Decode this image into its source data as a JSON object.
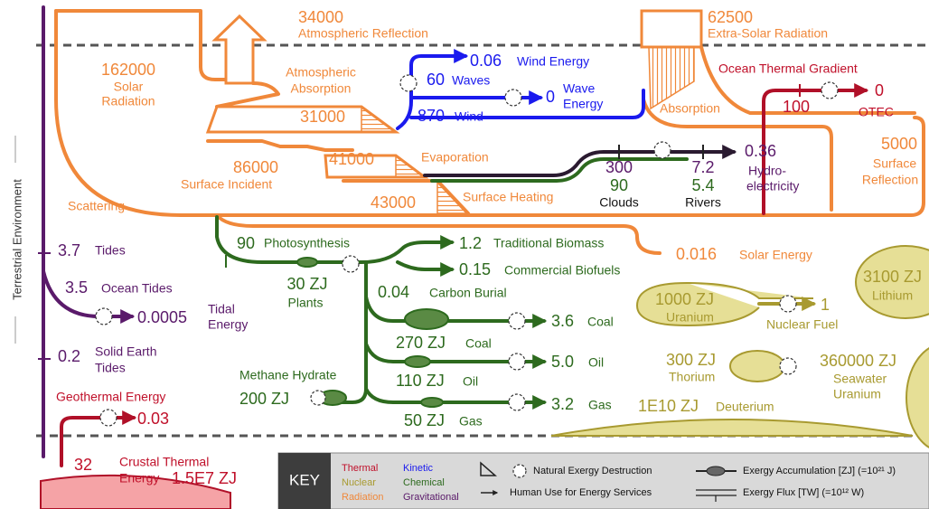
{
  "side_label": "Terrestrial Environment",
  "nodes": {
    "atmospheric_reflection": {
      "value": 34000,
      "label": "Atmospheric Reflection"
    },
    "extra_solar": {
      "value": 62500,
      "label": "Extra-Solar Radiation"
    },
    "solar_radiation": {
      "value": 162000,
      "label": [
        "Solar",
        "Radiation"
      ]
    },
    "atmospheric_absorption": {
      "value": 31000,
      "label": [
        "Atmospheric",
        "Absorption"
      ]
    },
    "wind_energy": {
      "value": 0.06,
      "label": "Wind Energy"
    },
    "waves": {
      "value": 60,
      "label": "Waves"
    },
    "wave_energy": {
      "value": 0,
      "label": [
        "Wave",
        "Energy"
      ]
    },
    "wind": {
      "value": 870,
      "label": "Wind"
    },
    "absorption": {
      "label": "Absorption"
    },
    "ocean_thermal_gradient": {
      "value": 100,
      "label": "Ocean Thermal Gradient"
    },
    "otec": {
      "value": 0,
      "label": "OTEC"
    },
    "surface_reflection": {
      "value": 5000,
      "label": [
        "Surface",
        "Reflection"
      ]
    },
    "surface_incident": {
      "value": 86000,
      "label": "Surface Incident"
    },
    "evaporation": {
      "value": 41000,
      "label": "Evaporation"
    },
    "surface_heating": {
      "value": 43000,
      "label": "Surface Heating"
    },
    "scattering": {
      "label": "Scattering"
    },
    "clouds": {
      "values": [
        300,
        90
      ],
      "label": "Clouds"
    },
    "rivers": {
      "values": [
        7.2,
        5.4
      ],
      "label": "Rivers"
    },
    "hydroelectricity": {
      "value": 0.36,
      "label": [
        "Hydro-",
        "electricity"
      ]
    },
    "tides": {
      "value": 3.7,
      "label": "Tides"
    },
    "photosynthesis": {
      "value": 90,
      "label": "Photosynthesis"
    },
    "traditional_biomass": {
      "value": 1.2,
      "label": "Traditional Biomass"
    },
    "commercial_biofuels": {
      "value": 0.15,
      "label": "Commercial Biofuels"
    },
    "solar_energy": {
      "value": 0.016,
      "label": "Solar Energy"
    },
    "lithium": {
      "value": "3100 ZJ",
      "label": "Lithium"
    },
    "plants": {
      "value": "30 ZJ",
      "label": "Plants"
    },
    "carbon_burial": {
      "value": 0.04,
      "label": "Carbon Burial"
    },
    "ocean_tides": {
      "value": 3.5,
      "label": "Ocean Tides"
    },
    "tidal_energy": {
      "value": 0.0005,
      "label": [
        "Tidal",
        "Energy"
      ]
    },
    "uranium": {
      "value": "1000 ZJ",
      "label": "Uranium"
    },
    "nuclear_fuel": {
      "value": 1,
      "label": "Nuclear Fuel"
    },
    "coal_use": {
      "value": 3.6,
      "label": "Coal"
    },
    "coal": {
      "value": "270 ZJ",
      "label": "Coal"
    },
    "solid_earth_tides": {
      "value": 0.2,
      "label": [
        "Solid Earth",
        "Tides"
      ]
    },
    "thorium": {
      "value": "300 ZJ",
      "label": "Thorium"
    },
    "seawater_uranium": {
      "value": "360000 ZJ",
      "label": [
        "Seawater",
        "Uranium"
      ]
    },
    "oil_use": {
      "value": "5.0",
      "label": "Oil"
    },
    "oil": {
      "value": "110 ZJ",
      "label": "Oil"
    },
    "methane_hydrate": {
      "value": "200 ZJ",
      "label": "Methane Hydrate"
    },
    "geothermal_energy": {
      "value": 0.03,
      "label": "Geothermal Energy"
    },
    "gas_use": {
      "value": 3.2,
      "label": "Gas"
    },
    "deuterium": {
      "value": "1E10 ZJ",
      "label": "Deuterium"
    },
    "gas": {
      "value": "50 ZJ",
      "label": "Gas"
    },
    "crustal_thermal": {
      "flux": 32,
      "stock": "1.5E7 ZJ",
      "label": [
        "Crustal Thermal",
        "Energy"
      ]
    }
  },
  "key": {
    "title": "KEY",
    "colors": [
      "Thermal",
      "Nuclear",
      "Radiation",
      "Kinetic",
      "Chemical",
      "Gravitational"
    ],
    "symbols": [
      "Natural Exergy Destruction",
      "Human Use for Energy Services",
      "Exergy Accumulation [ZJ] (=10²¹ J)",
      "Exergy Flux [TW] (=10¹² W)"
    ]
  }
}
